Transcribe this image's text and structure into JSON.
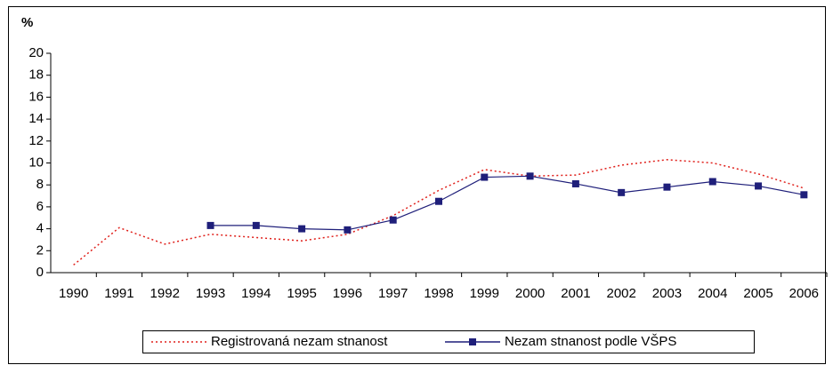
{
  "chart_data": {
    "type": "line",
    "y_label": "%",
    "categories": [
      "1990",
      "1991",
      "1992",
      "1993",
      "1994",
      "1995",
      "1996",
      "1997",
      "1998",
      "1999",
      "2000",
      "2001",
      "2002",
      "2003",
      "2004",
      "2005",
      "2006"
    ],
    "series": [
      {
        "name": "Registrovaná nezam stnanost",
        "color": "#e0201b",
        "style": "dotted",
        "values": [
          0.7,
          4.1,
          2.6,
          3.5,
          3.2,
          2.9,
          3.5,
          5.2,
          7.5,
          9.4,
          8.8,
          8.9,
          9.8,
          10.3,
          10.0,
          9.0,
          7.7
        ]
      },
      {
        "name": "Nezam stnanost podle VŠPS",
        "color": "#1f1f7a",
        "style": "solid",
        "marker": "square",
        "values": [
          null,
          null,
          null,
          4.3,
          4.3,
          4.0,
          3.9,
          4.8,
          6.5,
          8.7,
          8.8,
          8.1,
          7.3,
          7.8,
          8.3,
          7.9,
          7.1
        ]
      }
    ],
    "ylim": [
      0,
      20
    ],
    "yticks": [
      0,
      2,
      4,
      6,
      8,
      10,
      12,
      14,
      16,
      18,
      20
    ],
    "grid": false,
    "legend": "bottom"
  }
}
